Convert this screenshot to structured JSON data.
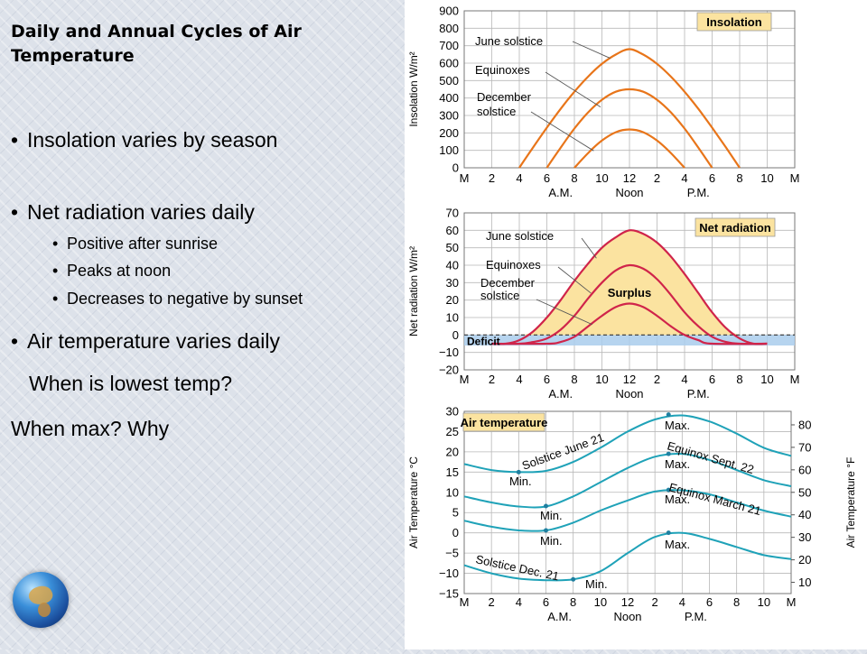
{
  "slide": {
    "title": "Daily and Annual Cycles of Air Temperature",
    "bullets": [
      "Insolation varies by season",
      "Net radiation varies daily",
      "Positive after sunrise",
      "Peaks at noon",
      "Decreases to negative by sunset",
      "Air temperature varies daily"
    ],
    "q1": "When is lowest temp?",
    "q2": "When max? Why"
  },
  "colors": {
    "insolation_curve": "#e8751a",
    "netrad_curve": "#d0244a",
    "surplus_fill": "#fbe3a0",
    "deficit_fill": "#a9cdec",
    "airtemp_curve": "#1fa2b8",
    "label_box": "#fbe3a0",
    "grid": "#b8b8b8"
  },
  "x_ticks": [
    "M",
    "2",
    "4",
    "6",
    "8",
    "10",
    "12",
    "2",
    "4",
    "6",
    "8",
    "10",
    "M"
  ],
  "x_groups": [
    "A.M.",
    "Noon",
    "P.M."
  ],
  "chart_data": [
    {
      "type": "line",
      "title": "Insolation",
      "ylabel": "Insolation W/m²",
      "ylim": [
        0,
        900
      ],
      "yticks": [
        0,
        100,
        200,
        300,
        400,
        500,
        600,
        700,
        800,
        900
      ],
      "series": [
        {
          "name": "June solstice",
          "x": [
            4,
            5,
            6,
            7,
            8,
            9,
            10,
            11,
            12,
            13,
            14,
            15,
            16,
            17,
            18,
            19,
            20
          ],
          "y": [
            0,
            117,
            230,
            338,
            436,
            523,
            596,
            649,
            680,
            649,
            596,
            523,
            436,
            338,
            230,
            117,
            0
          ]
        },
        {
          "name": "Equinoxes",
          "x": [
            6,
            7,
            8,
            9,
            10,
            11,
            12,
            13,
            14,
            15,
            16,
            17,
            18
          ],
          "y": [
            0,
            115,
            225,
            318,
            390,
            436,
            450,
            436,
            390,
            318,
            225,
            115,
            0
          ]
        },
        {
          "name": "December solstice",
          "x": [
            8,
            9,
            10,
            11,
            12,
            13,
            14,
            15,
            16
          ],
          "y": [
            0,
            85,
            156,
            204,
            220,
            204,
            156,
            85,
            0
          ]
        }
      ]
    },
    {
      "type": "line",
      "title": "Net radiation",
      "ylabel": "Net radiation W/m²",
      "ylim": [
        -20,
        70
      ],
      "yticks": [
        -20,
        -10,
        0,
        10,
        20,
        30,
        40,
        50,
        60,
        70
      ],
      "annotations": [
        "Surplus",
        "Deficit"
      ],
      "series": [
        {
          "name": "June solstice",
          "x": [
            2,
            3,
            4,
            5,
            6,
            7,
            8,
            9,
            10,
            11,
            12,
            13,
            14,
            15,
            16,
            17,
            18,
            19,
            20,
            21,
            22
          ],
          "y": [
            -5,
            -5,
            -3,
            2,
            10,
            20,
            31,
            41,
            50,
            56,
            60,
            58,
            53,
            45,
            35,
            24,
            13,
            4,
            -2,
            -5,
            -5
          ]
        },
        {
          "name": "Equinoxes",
          "x": [
            2,
            4,
            5,
            6,
            7,
            8,
            9,
            10,
            11,
            12,
            13,
            14,
            15,
            16,
            17,
            18,
            19,
            20,
            22
          ],
          "y": [
            -5,
            -5,
            -4,
            -2,
            3,
            11,
            21,
            30,
            37,
            40,
            38,
            32,
            23,
            13,
            5,
            -1,
            -4,
            -5,
            -5
          ]
        },
        {
          "name": "December solstice",
          "x": [
            2,
            6,
            7,
            8,
            9,
            10,
            11,
            12,
            13,
            14,
            15,
            16,
            17,
            18,
            22
          ],
          "y": [
            -5,
            -5,
            -4,
            -1,
            5,
            11,
            16,
            18,
            16,
            11,
            5,
            0,
            -3,
            -5,
            -5
          ]
        }
      ]
    },
    {
      "type": "line",
      "title": "Air temperature",
      "ylabel": "Air Temperature °C",
      "ylabel_right": "Air Temperature °F",
      "ylim": [
        -15,
        30
      ],
      "yticks": [
        -15,
        -10,
        -5,
        0,
        5,
        10,
        15,
        20,
        25,
        30
      ],
      "yticks_right": [
        10,
        20,
        30,
        40,
        50,
        60,
        70,
        80
      ],
      "series": [
        {
          "name": "Solstice June 21",
          "x": [
            0,
            2,
            4,
            6,
            8,
            10,
            12,
            14,
            16,
            18,
            20,
            22,
            24
          ],
          "y": [
            17,
            15.5,
            15,
            15.3,
            17.5,
            21,
            25,
            28,
            29,
            27.5,
            24.5,
            21,
            19
          ]
        },
        {
          "name": "Equinox Sept. 22",
          "x": [
            0,
            2,
            4,
            6,
            8,
            10,
            12,
            14,
            16,
            18,
            20,
            22,
            24
          ],
          "y": [
            9,
            7.5,
            6.5,
            6.5,
            9,
            12.5,
            16,
            18.8,
            19.5,
            18,
            15.5,
            13,
            11.5
          ]
        },
        {
          "name": "Equinox March 21",
          "x": [
            0,
            2,
            4,
            6,
            8,
            10,
            12,
            14,
            16,
            18,
            20,
            22,
            24
          ],
          "y": [
            3,
            1.5,
            0.6,
            0.6,
            2.5,
            5.5,
            8,
            10.2,
            10.5,
            9.5,
            7.5,
            5.5,
            4
          ]
        },
        {
          "name": "Solstice Dec. 21",
          "x": [
            0,
            2,
            4,
            6,
            8,
            10,
            12,
            14,
            16,
            18,
            20,
            22,
            24
          ],
          "y": [
            -8,
            -10,
            -11.3,
            -11.7,
            -11.5,
            -9.5,
            -5,
            -1,
            0,
            -1.5,
            -3.5,
            -5.5,
            -6.5
          ]
        }
      ],
      "labels": [
        "Min.",
        "Min.",
        "Min.",
        "Min.",
        "Max.",
        "Max.",
        "Max.",
        "Max."
      ]
    }
  ]
}
